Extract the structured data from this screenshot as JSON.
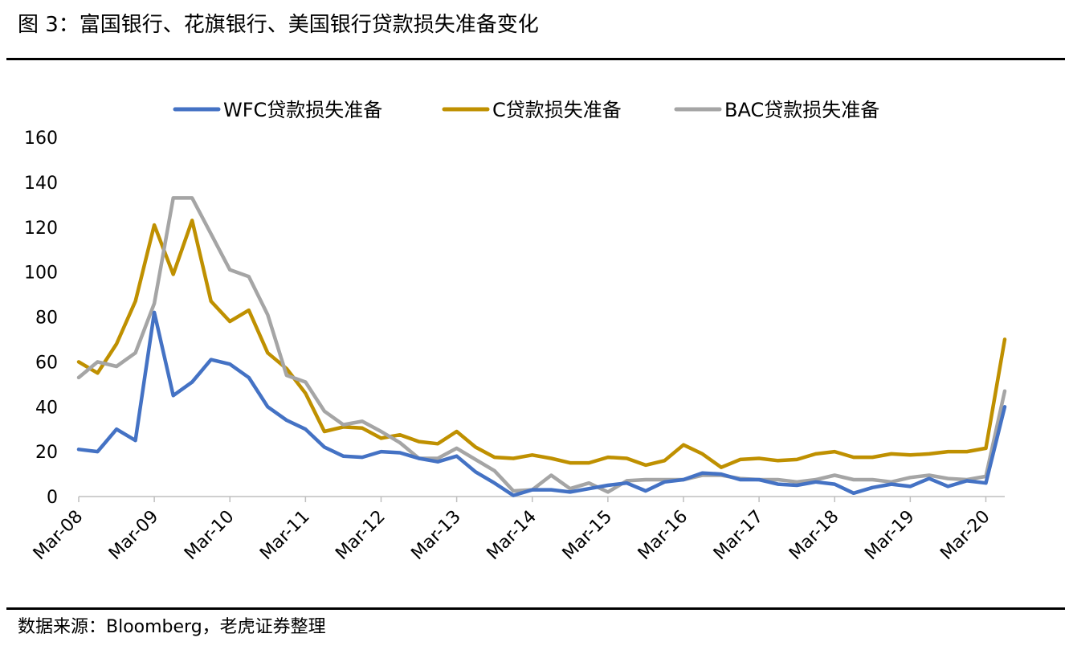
{
  "figure": {
    "title": "图 3：富国银行、花旗银行、美国银行贷款损失准备变化",
    "source": "数据来源：Bloomberg，老虎证券整理"
  },
  "chart_data": {
    "type": "line",
    "title": "图 3：富国银行、花旗银行、美国银行贷款损失准备变化",
    "xlabel": "",
    "ylabel": "",
    "ylim": [
      0,
      160
    ],
    "yticks": [
      "0",
      "20",
      "40",
      "60",
      "80",
      "100",
      "120",
      "140",
      "160"
    ],
    "xtick_labels": [
      "Mar-08",
      "Mar-09",
      "Mar-10",
      "Mar-11",
      "Mar-12",
      "Mar-13",
      "Mar-14",
      "Mar-15",
      "Mar-16",
      "Mar-17",
      "Mar-18",
      "Mar-19",
      "Mar-20"
    ],
    "grid": false,
    "legend_position": "top",
    "series": [
      {
        "name": "WFC贷款损失准备",
        "color": "#4472C4",
        "values": [
          21,
          20,
          30,
          25,
          82,
          45,
          51,
          61,
          59,
          53,
          40,
          34,
          30,
          22,
          18,
          17.5,
          20,
          19.5,
          17,
          15.5,
          18,
          11,
          6,
          0.5,
          3,
          3,
          2,
          3.5,
          5,
          6,
          2.5,
          6.5,
          7.5,
          10.5,
          10,
          7.5,
          7.5,
          5.5,
          5,
          6.5,
          5.5,
          1.5,
          4,
          5.5,
          4.5,
          8,
          4.5,
          7,
          6,
          40
        ]
      },
      {
        "name": "C贷款损失准备",
        "color": "#BF9000",
        "values": [
          60,
          55,
          68,
          87,
          121,
          99,
          123,
          87,
          78,
          83,
          64,
          57,
          46,
          29,
          31,
          30.5,
          26,
          27.5,
          24.5,
          23.5,
          29,
          22,
          17.5,
          17,
          18.5,
          17,
          15,
          15,
          17.5,
          17,
          14,
          16,
          23,
          19,
          13,
          16.5,
          17,
          16,
          16.5,
          19,
          20,
          17.5,
          17.5,
          19,
          18.5,
          19,
          20,
          20,
          21.5,
          70
        ]
      },
      {
        "name": "BAC贷款损失准备",
        "color": "#A5A5A5",
        "values": [
          53,
          60,
          58,
          64,
          86,
          133,
          133,
          117,
          101,
          98,
          81,
          54,
          51,
          38,
          32,
          33.5,
          29,
          24,
          17,
          17,
          21.5,
          16.5,
          11.5,
          2.5,
          3,
          9.5,
          3.5,
          6,
          2,
          7,
          7.5,
          7.5,
          7.5,
          9.5,
          9.5,
          8,
          7.5,
          7.5,
          6.5,
          7.5,
          9.5,
          7.5,
          7.5,
          6.5,
          8.5,
          9.5,
          8,
          7.5,
          9,
          47
        ]
      }
    ]
  }
}
